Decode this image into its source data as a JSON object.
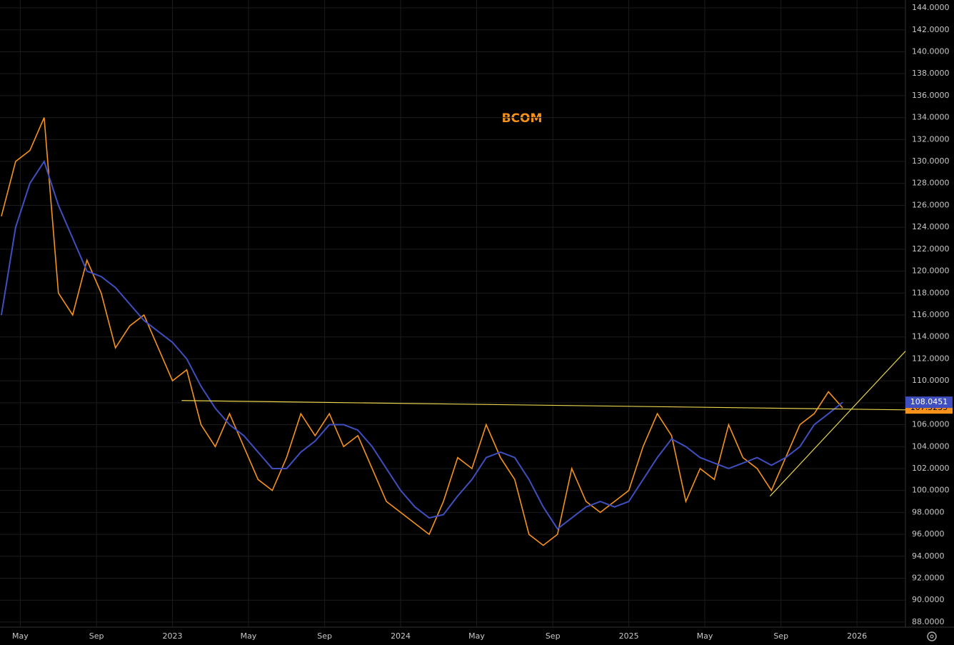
{
  "chart_data": {
    "type": "line",
    "title": "BCOM",
    "x": [
      2022.25,
      2022.3125,
      2022.375,
      2022.4375,
      2022.5,
      2022.5625,
      2022.625,
      2022.6875,
      2022.75,
      2022.8125,
      2022.875,
      2022.9375,
      2023.0,
      2023.0625,
      2023.125,
      2023.1875,
      2023.25,
      2023.3125,
      2023.375,
      2023.4375,
      2023.5,
      2023.5625,
      2023.625,
      2023.6875,
      2023.75,
      2023.8125,
      2023.875,
      2023.9375,
      2024.0,
      2024.0625,
      2024.125,
      2024.1875,
      2024.25,
      2024.3125,
      2024.375,
      2024.4375,
      2024.5,
      2024.5625,
      2024.625,
      2024.6875,
      2024.75,
      2024.8125,
      2024.875,
      2024.9375,
      2025.0,
      2025.0625,
      2025.125,
      2025.1875,
      2025.25,
      2025.3125,
      2025.375,
      2025.4375,
      2025.5,
      2025.5625,
      2025.625,
      2025.6875,
      2025.75,
      2025.8125,
      2025.875,
      2025.9375
    ],
    "series": [
      {
        "color": "#f7931a",
        "values": [
          125,
          130,
          131,
          134,
          118,
          116,
          121,
          118,
          113,
          115,
          116,
          113,
          110,
          111,
          106,
          104,
          107,
          104,
          101,
          100,
          103,
          107,
          105,
          107,
          104,
          105,
          102,
          99,
          98,
          97,
          96,
          99,
          103,
          102,
          106,
          103,
          101,
          96,
          95,
          96,
          102,
          99,
          98,
          99,
          100,
          104,
          107,
          105,
          99,
          102,
          101,
          106,
          103,
          102,
          100,
          103,
          106,
          107,
          109,
          107.5235
        ]
      },
      {
        "color": "#3f4fc0",
        "values": [
          116,
          124,
          128,
          130,
          126,
          123,
          120,
          119.5,
          118.5,
          117,
          115.5,
          114.5,
          113.5,
          112,
          109.5,
          107.5,
          106,
          105,
          103.5,
          102,
          102,
          103.5,
          104.5,
          106,
          106,
          105.5,
          104,
          102,
          100,
          98.5,
          97.5,
          97.8,
          99.5,
          101,
          103,
          103.5,
          103,
          101,
          98.5,
          96.5,
          97.5,
          98.5,
          99,
          98.5,
          99,
          101,
          103,
          104.7,
          104,
          103,
          102.5,
          102,
          102.5,
          103,
          102.3,
          103,
          104,
          106,
          107,
          108.0451
        ]
      }
    ],
    "trendlines": [
      {
        "color": "#e8d44d",
        "x": [
          2023.04,
          2026.2125
        ],
        "y": [
          108.2,
          107.35
        ]
      },
      {
        "color": "#e8d44d",
        "x": [
          2025.619,
          2026.2125
        ],
        "y": [
          99.48,
          112.7
        ]
      }
    ],
    "xlim": [
      2022.244,
      2026.2125
    ],
    "ylim": [
      87.54,
      144.72
    ],
    "xticks": [
      {
        "value": 2022.333,
        "label": "May"
      },
      {
        "value": 2022.667,
        "label": "Sep"
      },
      2023,
      {
        "value": 2023.333,
        "label": "May"
      },
      {
        "value": 2023.667,
        "label": "Sep"
      },
      2024,
      {
        "value": 2024.333,
        "label": "May"
      },
      {
        "value": 2024.667,
        "label": "Sep"
      },
      2025,
      {
        "value": 2025.333,
        "label": "May"
      },
      {
        "value": 2025.667,
        "label": "Sep"
      },
      2026
    ],
    "yticks": [
      {
        "value": 88,
        "label": "88.0000"
      },
      {
        "value": 90,
        "label": "90.0000"
      },
      {
        "value": 92,
        "label": "92.0000"
      },
      {
        "value": 94,
        "label": "94.0000"
      },
      {
        "value": 96,
        "label": "96.0000"
      },
      {
        "value": 98,
        "label": "98.0000"
      },
      {
        "value": 100,
        "label": "100.0000"
      },
      {
        "value": 102,
        "label": "102.0000"
      },
      {
        "value": 104,
        "label": "104.0000"
      },
      {
        "value": 106,
        "label": "106.0000"
      },
      {
        "value": 108,
        "label": "108.0000"
      },
      {
        "value": 110,
        "label": "110.0000"
      },
      {
        "value": 112,
        "label": "112.0000"
      },
      {
        "value": 114,
        "label": "114.0000"
      },
      {
        "value": 116,
        "label": "116.0000"
      },
      {
        "value": 118,
        "label": "118.0000"
      },
      {
        "value": 120,
        "label": "120.0000"
      },
      {
        "value": 122,
        "label": "122.0000"
      },
      {
        "value": 124,
        "label": "124.0000"
      },
      {
        "value": 126,
        "label": "126.0000"
      },
      {
        "value": 128,
        "label": "128.0000"
      },
      {
        "value": 130,
        "label": "130.0000"
      },
      {
        "value": 132,
        "label": "132.0000"
      },
      {
        "value": 134,
        "label": "134.0000"
      },
      {
        "value": 136,
        "label": "136.0000"
      },
      {
        "value": 138,
        "label": "138.0000"
      },
      {
        "value": 140,
        "label": "140.0000"
      },
      {
        "value": 142,
        "label": "142.0000"
      },
      {
        "value": 144,
        "label": "144.0000"
      }
    ],
    "grid": true
  }
}
